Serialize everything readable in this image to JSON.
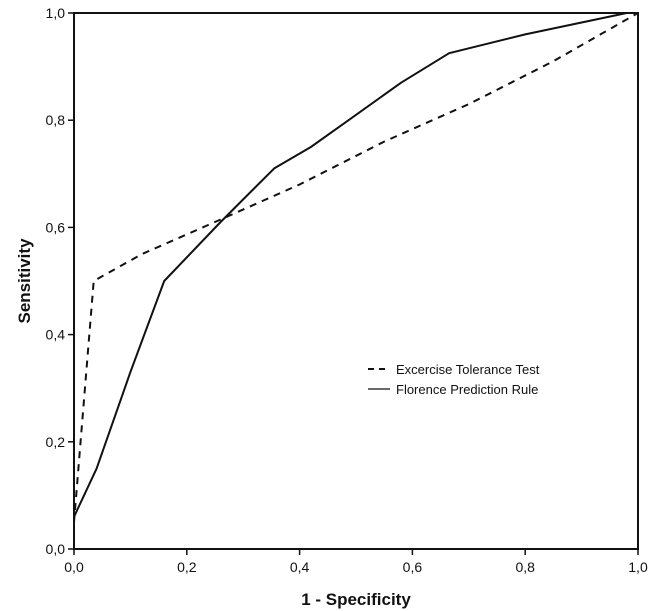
{
  "chart_data": {
    "type": "line",
    "title": "",
    "xlabel": "1 - Specificity",
    "ylabel": "Sensitivity",
    "xlim": [
      0,
      1
    ],
    "ylim": [
      0,
      1
    ],
    "xticks": [
      "0,0",
      "0,2",
      "0,4",
      "0,6",
      "0,8",
      "1,0"
    ],
    "yticks": [
      "0,0",
      "0,2",
      "0,4",
      "0,6",
      "0,8",
      "1,0"
    ],
    "grid": false,
    "legend_position": "center-right",
    "series": [
      {
        "name": "Excercise Tolerance Test",
        "style": "dashed",
        "color": "#111111",
        "x": [
          0.0,
          0.0,
          0.035,
          0.12,
          0.25,
          0.4,
          0.55,
          0.7,
          0.85,
          1.0
        ],
        "y": [
          0.0,
          0.05,
          0.5,
          0.55,
          0.61,
          0.68,
          0.76,
          0.83,
          0.91,
          1.0
        ]
      },
      {
        "name": "Florence Prediction Rule",
        "style": "solid",
        "color": "#111111",
        "x": [
          0.0,
          0.0,
          0.04,
          0.1,
          0.16,
          0.26,
          0.355,
          0.42,
          0.48,
          0.58,
          0.665,
          0.8,
          0.98,
          1.0
        ],
        "y": [
          0.0,
          0.06,
          0.15,
          0.33,
          0.5,
          0.61,
          0.71,
          0.75,
          0.795,
          0.87,
          0.925,
          0.96,
          1.0,
          1.0
        ]
      }
    ]
  }
}
